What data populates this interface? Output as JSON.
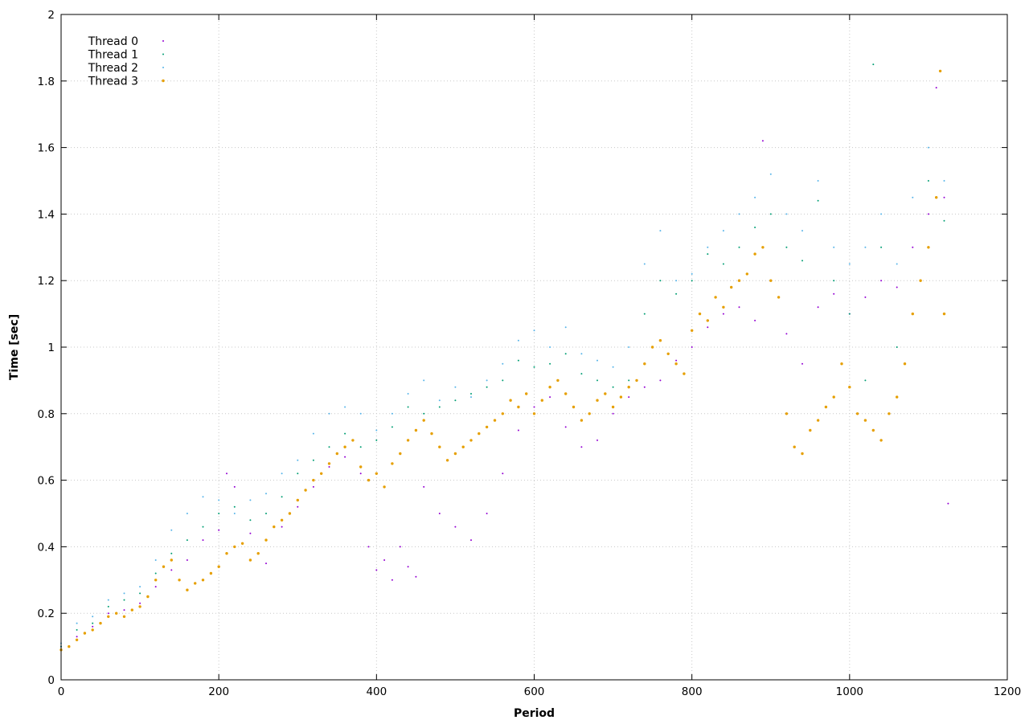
{
  "chart_data": {
    "type": "scatter",
    "xlabel": "Period",
    "ylabel": "Time [sec]",
    "xlim": [
      0,
      1200
    ],
    "ylim": [
      0,
      2
    ],
    "x_ticks": [
      "0",
      "200",
      "400",
      "600",
      "800",
      "1000",
      "1200"
    ],
    "y_ticks": [
      "0",
      "0.2",
      "0.4",
      "0.6",
      "0.8",
      "1",
      "1.2",
      "1.4",
      "1.6",
      "1.8",
      "2"
    ],
    "grid": true,
    "legend_position": "top-left",
    "series": [
      {
        "name": "Thread 0",
        "color": "#9400d3",
        "points": [
          [
            0,
            0.1
          ],
          [
            20,
            0.13
          ],
          [
            40,
            0.16
          ],
          [
            60,
            0.2
          ],
          [
            80,
            0.21
          ],
          [
            100,
            0.23
          ],
          [
            120,
            0.28
          ],
          [
            140,
            0.33
          ],
          [
            160,
            0.36
          ],
          [
            180,
            0.42
          ],
          [
            200,
            0.45
          ],
          [
            210,
            0.62
          ],
          [
            220,
            0.58
          ],
          [
            240,
            0.44
          ],
          [
            260,
            0.35
          ],
          [
            280,
            0.46
          ],
          [
            300,
            0.52
          ],
          [
            320,
            0.58
          ],
          [
            340,
            0.64
          ],
          [
            360,
            0.67
          ],
          [
            380,
            0.62
          ],
          [
            390,
            0.4
          ],
          [
            400,
            0.33
          ],
          [
            410,
            0.36
          ],
          [
            420,
            0.3
          ],
          [
            430,
            0.4
          ],
          [
            440,
            0.34
          ],
          [
            450,
            0.31
          ],
          [
            460,
            0.58
          ],
          [
            480,
            0.5
          ],
          [
            500,
            0.46
          ],
          [
            520,
            0.42
          ],
          [
            540,
            0.5
          ],
          [
            560,
            0.62
          ],
          [
            580,
            0.75
          ],
          [
            600,
            0.82
          ],
          [
            620,
            0.85
          ],
          [
            640,
            0.76
          ],
          [
            660,
            0.7
          ],
          [
            680,
            0.72
          ],
          [
            700,
            0.8
          ],
          [
            720,
            0.85
          ],
          [
            740,
            0.88
          ],
          [
            760,
            0.9
          ],
          [
            780,
            0.96
          ],
          [
            800,
            1.0
          ],
          [
            820,
            1.06
          ],
          [
            840,
            1.1
          ],
          [
            860,
            1.12
          ],
          [
            880,
            1.08
          ],
          [
            890,
            1.62
          ],
          [
            900,
            1.2
          ],
          [
            920,
            1.04
          ],
          [
            940,
            0.95
          ],
          [
            960,
            1.12
          ],
          [
            980,
            1.16
          ],
          [
            1000,
            1.1
          ],
          [
            1020,
            1.15
          ],
          [
            1040,
            1.2
          ],
          [
            1060,
            1.18
          ],
          [
            1080,
            1.3
          ],
          [
            1100,
            1.4
          ],
          [
            1110,
            1.78
          ],
          [
            1120,
            1.45
          ],
          [
            1125,
            0.53
          ]
        ]
      },
      {
        "name": "Thread 1",
        "color": "#009e73",
        "points": [
          [
            0,
            0.1
          ],
          [
            20,
            0.15
          ],
          [
            40,
            0.17
          ],
          [
            60,
            0.22
          ],
          [
            80,
            0.24
          ],
          [
            100,
            0.26
          ],
          [
            120,
            0.32
          ],
          [
            140,
            0.38
          ],
          [
            160,
            0.42
          ],
          [
            180,
            0.46
          ],
          [
            200,
            0.5
          ],
          [
            220,
            0.52
          ],
          [
            240,
            0.48
          ],
          [
            260,
            0.5
          ],
          [
            280,
            0.55
          ],
          [
            300,
            0.62
          ],
          [
            320,
            0.66
          ],
          [
            340,
            0.7
          ],
          [
            360,
            0.74
          ],
          [
            380,
            0.7
          ],
          [
            400,
            0.72
          ],
          [
            420,
            0.76
          ],
          [
            440,
            0.82
          ],
          [
            460,
            0.8
          ],
          [
            480,
            0.82
          ],
          [
            500,
            0.84
          ],
          [
            520,
            0.86
          ],
          [
            540,
            0.88
          ],
          [
            560,
            0.9
          ],
          [
            580,
            0.96
          ],
          [
            600,
            0.94
          ],
          [
            620,
            0.95
          ],
          [
            640,
            0.98
          ],
          [
            660,
            0.92
          ],
          [
            680,
            0.9
          ],
          [
            700,
            0.88
          ],
          [
            720,
            0.9
          ],
          [
            740,
            1.1
          ],
          [
            760,
            1.2
          ],
          [
            780,
            1.16
          ],
          [
            800,
            1.2
          ],
          [
            820,
            1.28
          ],
          [
            840,
            1.25
          ],
          [
            860,
            1.3
          ],
          [
            880,
            1.36
          ],
          [
            900,
            1.4
          ],
          [
            920,
            1.3
          ],
          [
            940,
            1.26
          ],
          [
            960,
            1.44
          ],
          [
            980,
            1.2
          ],
          [
            1000,
            1.1
          ],
          [
            1020,
            0.9
          ],
          [
            1030,
            1.85
          ],
          [
            1040,
            1.3
          ],
          [
            1060,
            1.0
          ],
          [
            1080,
            1.1
          ],
          [
            1100,
            1.5
          ],
          [
            1120,
            1.38
          ]
        ]
      },
      {
        "name": "Thread 2",
        "color": "#56b4e9",
        "points": [
          [
            0,
            0.11
          ],
          [
            20,
            0.17
          ],
          [
            40,
            0.19
          ],
          [
            60,
            0.24
          ],
          [
            80,
            0.26
          ],
          [
            100,
            0.28
          ],
          [
            120,
            0.36
          ],
          [
            140,
            0.45
          ],
          [
            160,
            0.5
          ],
          [
            180,
            0.55
          ],
          [
            200,
            0.54
          ],
          [
            220,
            0.5
          ],
          [
            240,
            0.54
          ],
          [
            260,
            0.56
          ],
          [
            280,
            0.62
          ],
          [
            300,
            0.66
          ],
          [
            320,
            0.74
          ],
          [
            340,
            0.8
          ],
          [
            360,
            0.82
          ],
          [
            380,
            0.8
          ],
          [
            400,
            0.75
          ],
          [
            420,
            0.8
          ],
          [
            440,
            0.86
          ],
          [
            460,
            0.9
          ],
          [
            480,
            0.84
          ],
          [
            500,
            0.88
          ],
          [
            520,
            0.85
          ],
          [
            540,
            0.9
          ],
          [
            560,
            0.95
          ],
          [
            580,
            1.02
          ],
          [
            600,
            1.05
          ],
          [
            620,
            1.0
          ],
          [
            640,
            1.06
          ],
          [
            660,
            0.98
          ],
          [
            680,
            0.96
          ],
          [
            700,
            0.94
          ],
          [
            720,
            1.0
          ],
          [
            740,
            1.25
          ],
          [
            760,
            1.35
          ],
          [
            780,
            1.2
          ],
          [
            800,
            1.22
          ],
          [
            820,
            1.3
          ],
          [
            840,
            1.35
          ],
          [
            860,
            1.4
          ],
          [
            880,
            1.45
          ],
          [
            900,
            1.52
          ],
          [
            920,
            1.4
          ],
          [
            940,
            1.35
          ],
          [
            960,
            1.5
          ],
          [
            980,
            1.3
          ],
          [
            1000,
            1.25
          ],
          [
            1020,
            1.3
          ],
          [
            1040,
            1.4
          ],
          [
            1060,
            1.25
          ],
          [
            1080,
            1.45
          ],
          [
            1100,
            1.6
          ],
          [
            1120,
            1.5
          ]
        ]
      },
      {
        "name": "Thread 3",
        "color": "#e69f00",
        "points": [
          [
            0,
            0.09
          ],
          [
            10,
            0.1
          ],
          [
            20,
            0.12
          ],
          [
            30,
            0.14
          ],
          [
            40,
            0.15
          ],
          [
            50,
            0.17
          ],
          [
            60,
            0.19
          ],
          [
            70,
            0.2
          ],
          [
            80,
            0.19
          ],
          [
            90,
            0.21
          ],
          [
            100,
            0.22
          ],
          [
            110,
            0.25
          ],
          [
            120,
            0.3
          ],
          [
            130,
            0.34
          ],
          [
            140,
            0.36
          ],
          [
            150,
            0.3
          ],
          [
            160,
            0.27
          ],
          [
            170,
            0.29
          ],
          [
            180,
            0.3
          ],
          [
            190,
            0.32
          ],
          [
            200,
            0.34
          ],
          [
            210,
            0.38
          ],
          [
            220,
            0.4
          ],
          [
            230,
            0.41
          ],
          [
            240,
            0.36
          ],
          [
            250,
            0.38
          ],
          [
            260,
            0.42
          ],
          [
            270,
            0.46
          ],
          [
            280,
            0.48
          ],
          [
            290,
            0.5
          ],
          [
            300,
            0.54
          ],
          [
            310,
            0.57
          ],
          [
            320,
            0.6
          ],
          [
            330,
            0.62
          ],
          [
            340,
            0.65
          ],
          [
            350,
            0.68
          ],
          [
            360,
            0.7
          ],
          [
            370,
            0.72
          ],
          [
            380,
            0.64
          ],
          [
            390,
            0.6
          ],
          [
            400,
            0.62
          ],
          [
            410,
            0.58
          ],
          [
            420,
            0.65
          ],
          [
            430,
            0.68
          ],
          [
            440,
            0.72
          ],
          [
            450,
            0.75
          ],
          [
            460,
            0.78
          ],
          [
            470,
            0.74
          ],
          [
            480,
            0.7
          ],
          [
            490,
            0.66
          ],
          [
            500,
            0.68
          ],
          [
            510,
            0.7
          ],
          [
            520,
            0.72
          ],
          [
            530,
            0.74
          ],
          [
            540,
            0.76
          ],
          [
            550,
            0.78
          ],
          [
            560,
            0.8
          ],
          [
            570,
            0.84
          ],
          [
            580,
            0.82
          ],
          [
            590,
            0.86
          ],
          [
            600,
            0.8
          ],
          [
            610,
            0.84
          ],
          [
            620,
            0.88
          ],
          [
            630,
            0.9
          ],
          [
            640,
            0.86
          ],
          [
            650,
            0.82
          ],
          [
            660,
            0.78
          ],
          [
            670,
            0.8
          ],
          [
            680,
            0.84
          ],
          [
            690,
            0.86
          ],
          [
            700,
            0.82
          ],
          [
            710,
            0.85
          ],
          [
            720,
            0.88
          ],
          [
            730,
            0.9
          ],
          [
            740,
            0.95
          ],
          [
            750,
            1.0
          ],
          [
            760,
            1.02
          ],
          [
            770,
            0.98
          ],
          [
            780,
            0.95
          ],
          [
            790,
            0.92
          ],
          [
            800,
            1.05
          ],
          [
            810,
            1.1
          ],
          [
            820,
            1.08
          ],
          [
            830,
            1.15
          ],
          [
            840,
            1.12
          ],
          [
            850,
            1.18
          ],
          [
            860,
            1.2
          ],
          [
            870,
            1.22
          ],
          [
            880,
            1.28
          ],
          [
            890,
            1.3
          ],
          [
            900,
            1.2
          ],
          [
            910,
            1.15
          ],
          [
            920,
            0.8
          ],
          [
            930,
            0.7
          ],
          [
            940,
            0.68
          ],
          [
            950,
            0.75
          ],
          [
            960,
            0.78
          ],
          [
            970,
            0.82
          ],
          [
            980,
            0.85
          ],
          [
            990,
            0.95
          ],
          [
            1000,
            0.88
          ],
          [
            1010,
            0.8
          ],
          [
            1020,
            0.78
          ],
          [
            1030,
            0.75
          ],
          [
            1040,
            0.72
          ],
          [
            1050,
            0.8
          ],
          [
            1060,
            0.85
          ],
          [
            1070,
            0.95
          ],
          [
            1080,
            1.1
          ],
          [
            1090,
            1.2
          ],
          [
            1100,
            1.3
          ],
          [
            1110,
            1.45
          ],
          [
            1115,
            1.83
          ],
          [
            1120,
            1.1
          ]
        ]
      }
    ]
  }
}
